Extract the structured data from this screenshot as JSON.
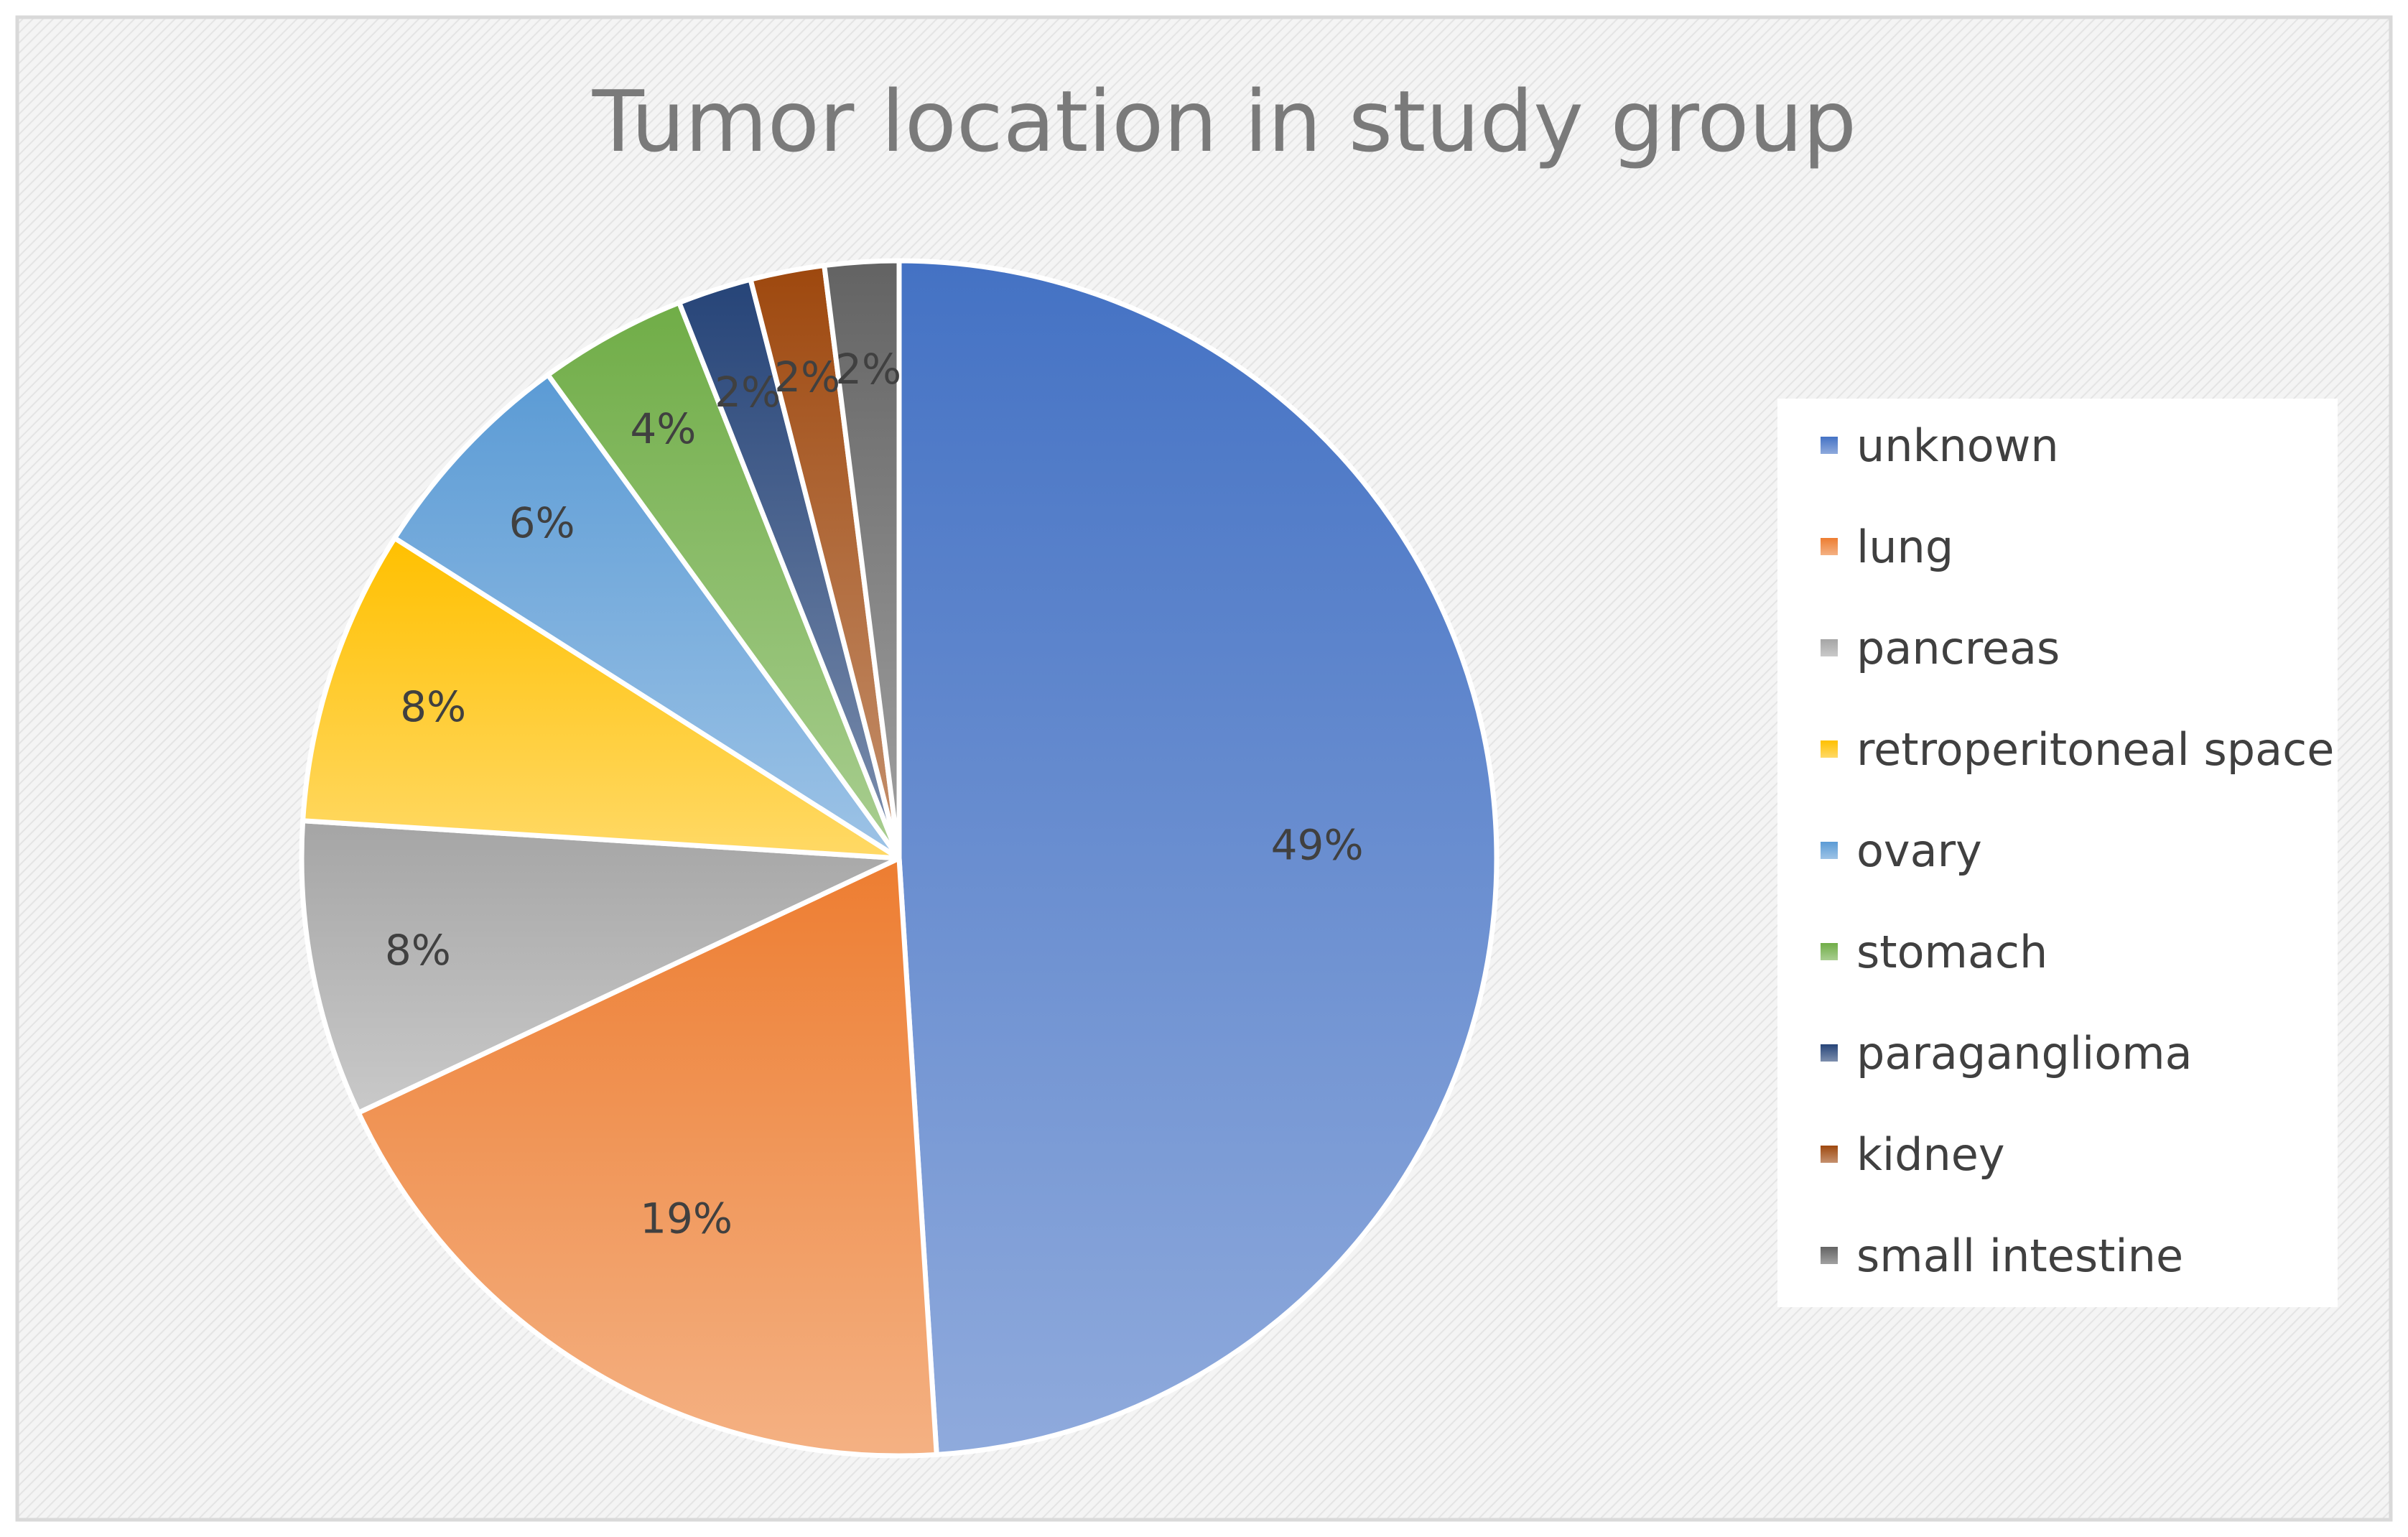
{
  "chart_data": {
    "type": "pie",
    "title": "Tumor location in study group",
    "categories": [
      "unknown",
      "lung",
      "pancreas",
      "retroperitoneal space",
      "ovary",
      "stomach",
      "paraganglioma",
      "kidney",
      "small intestine"
    ],
    "values": [
      49,
      19,
      8,
      8,
      6,
      4,
      2,
      2,
      2
    ],
    "data_labels": [
      "49%",
      "19%",
      "8%",
      "8%",
      "6%",
      "4%",
      "2%",
      "2%",
      "2%"
    ],
    "colors": [
      "#4472c4",
      "#ed7d31",
      "#a5a5a5",
      "#ffc000",
      "#5b9bd5",
      "#70ad47",
      "#264478",
      "#9e480e",
      "#636363"
    ],
    "legend_position": "right",
    "start_angle": "12 o'clock",
    "direction": "clockwise"
  }
}
